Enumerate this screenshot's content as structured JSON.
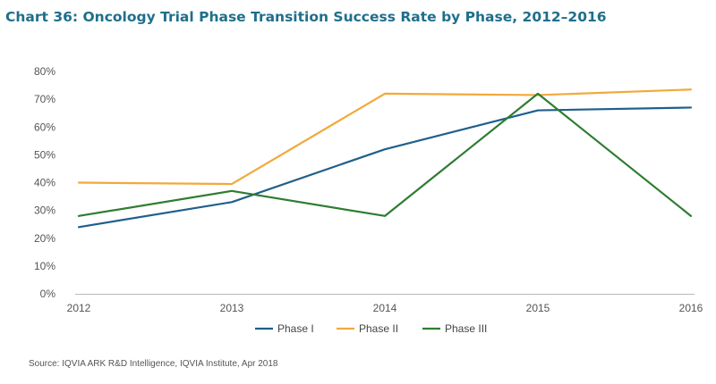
{
  "chart_data": {
    "type": "line",
    "title": "Chart 36: Oncology Trial Phase Transition Success Rate by Phase, 2012–2016",
    "x": [
      "2012",
      "2013",
      "2014",
      "2015",
      "2016"
    ],
    "yticks": [
      "0%",
      "10%",
      "20%",
      "30%",
      "40%",
      "50%",
      "60%",
      "70%",
      "80%"
    ],
    "ylim": [
      0,
      80
    ],
    "grid": false,
    "legend": "bottom",
    "series": [
      {
        "name": "Phase I",
        "color": "#1f5f8b",
        "values": [
          24,
          33,
          52,
          66,
          67
        ]
      },
      {
        "name": "Phase II",
        "color": "#f2a93b",
        "values": [
          40,
          39.5,
          72,
          71.5,
          73.5
        ]
      },
      {
        "name": "Phase III",
        "color": "#2e7d32",
        "values": [
          28,
          37,
          28,
          72,
          28
        ]
      }
    ],
    "source": "Source: IQVIA ARK R&D Intelligence, IQVIA Institute, Apr 2018"
  }
}
